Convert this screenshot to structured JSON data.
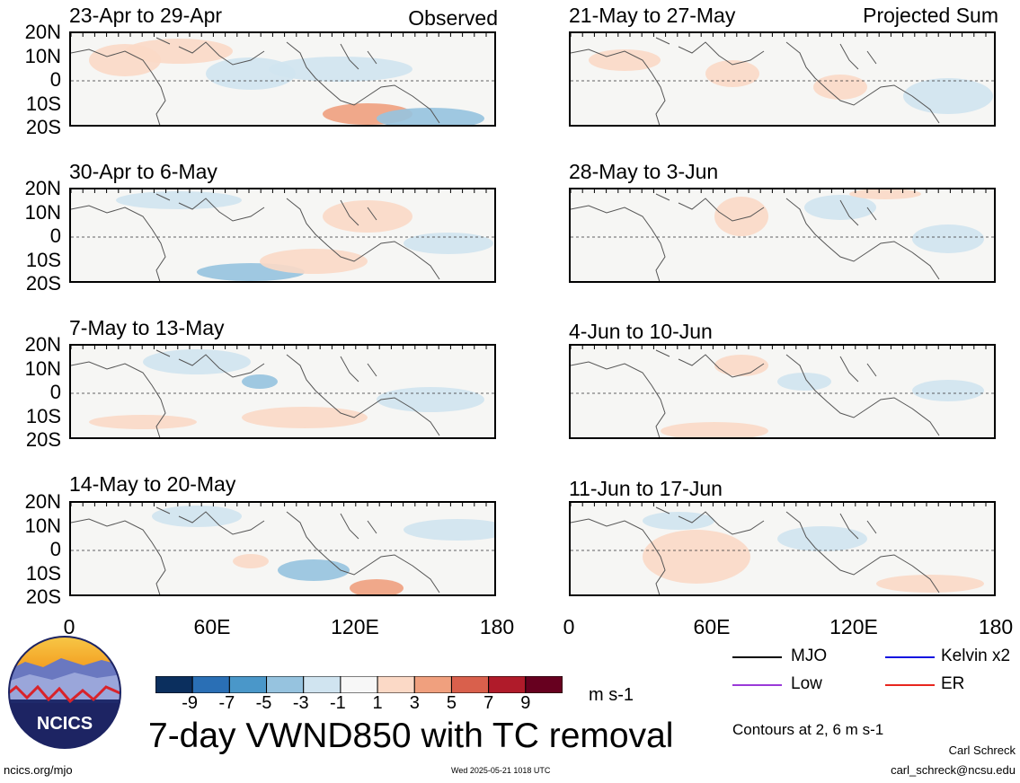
{
  "panels_left": [
    {
      "title": "23-Apr to 29-Apr",
      "corner": "Observed"
    },
    {
      "title": "30-Apr to 6-May",
      "corner": ""
    },
    {
      "title": "7-May to 13-May",
      "corner": ""
    },
    {
      "title": "14-May to 20-May",
      "corner": ""
    }
  ],
  "panels_right": [
    {
      "title": "21-May to 27-May",
      "corner": "Projected Sum"
    },
    {
      "title": "28-May to 3-Jun",
      "corner": ""
    },
    {
      "title": "4-Jun to 10-Jun",
      "corner": ""
    },
    {
      "title": "11-Jun to 17-Jun",
      "corner": ""
    }
  ],
  "lat_labels": [
    "20N",
    "10N",
    "0",
    "10S",
    "20S"
  ],
  "lon_labels": [
    "0",
    "60E",
    "120E",
    "180"
  ],
  "colorbar": {
    "colors": [
      "#0b2f5e",
      "#2a6fb5",
      "#4a97c9",
      "#96c3df",
      "#d0e4f0",
      "#f7f7f7",
      "#fbd9c6",
      "#f0a07e",
      "#d9604c",
      "#b01b2a",
      "#67001f"
    ],
    "ticks": [
      "-9",
      "-7",
      "-5",
      "-3",
      "-1",
      "1",
      "3",
      "5",
      "7",
      "9"
    ],
    "units": "m s-1"
  },
  "main_title": "7-day VWND850 with TC removal",
  "legend": {
    "items": [
      {
        "label": "MJO",
        "color": "#000000"
      },
      {
        "label": "Kelvin x2",
        "color": "#1010e0"
      },
      {
        "label": "Low",
        "color": "#9a3ad8"
      },
      {
        "label": "ER",
        "color": "#e8261e"
      }
    ],
    "contours_note": "Contours at 2, 6 m s-1"
  },
  "logo_text": "NCICS",
  "footer": {
    "url": "ncics.org/mjo",
    "timestamp": "Wed 2025-05-21 1018 UTC",
    "author": "Carl Schreck",
    "email": "carl_schreck@ncsu.edu"
  }
}
